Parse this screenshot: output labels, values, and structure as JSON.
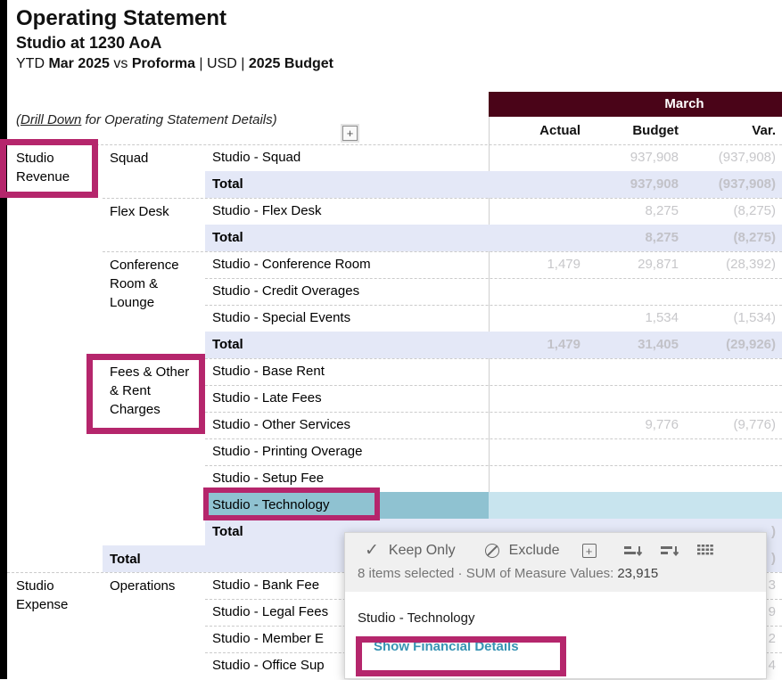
{
  "title": {
    "heading": "Operating Statement",
    "subheading": "Studio at 1230 AoA",
    "subtitle_parts": [
      {
        "text": "YTD ",
        "bold": false
      },
      {
        "text": "Mar 2025",
        "bold": true
      },
      {
        "text": " vs ",
        "bold": false
      },
      {
        "text": "Proforma",
        "bold": true
      },
      {
        "text": " | USD | ",
        "bold": false
      },
      {
        "text": "2025 Budget",
        "bold": true
      }
    ]
  },
  "drill_note_parts": [
    {
      "text": "(",
      "underline": false
    },
    {
      "text": "Drill Down",
      "underline": true
    },
    {
      "text": " for Operating Statement Details)",
      "underline": false
    }
  ],
  "expand_glyph": "+",
  "table": {
    "month_header": "March",
    "columns": [
      "Actual",
      "Budget",
      "Var."
    ],
    "rows": [
      {
        "l1": "Studio Revenue",
        "l2": "Squad",
        "label": "Studio - Squad",
        "actual": "",
        "budget": "937,908",
        "var": "(937,908)",
        "type": "item",
        "sep": "l1"
      },
      {
        "label": "Total",
        "actual": "",
        "budget": "937,908",
        "var": "(937,908)",
        "type": "total",
        "sep": "l3"
      },
      {
        "l2": "Flex Desk",
        "label": "Studio - Flex Desk",
        "actual": "",
        "budget": "8,275",
        "var": "(8,275)",
        "type": "item",
        "sep": "l2"
      },
      {
        "label": "Total",
        "actual": "",
        "budget": "8,275",
        "var": "(8,275)",
        "type": "total",
        "sep": "l3"
      },
      {
        "l2": "Conference Room & Lounge",
        "label": "Studio - Conference Room",
        "actual": "1,479",
        "budget": "29,871",
        "var": "(28,392)",
        "type": "item",
        "sep": "l2"
      },
      {
        "label": "Studio - Credit Overages",
        "actual": "",
        "budget": "",
        "var": "",
        "type": "item",
        "sep": "l3"
      },
      {
        "label": "Studio - Special Events",
        "actual": "",
        "budget": "1,534",
        "var": "(1,534)",
        "type": "item",
        "sep": "l3"
      },
      {
        "label": "Total",
        "actual": "1,479",
        "budget": "31,405",
        "var": "(29,926)",
        "type": "total",
        "sep": "l3"
      },
      {
        "l2": "Fees & Other & Rent Charges",
        "label": "Studio - Base Rent",
        "actual": "",
        "budget": "",
        "var": "",
        "type": "item",
        "sep": "l2"
      },
      {
        "label": "Studio - Late Fees",
        "actual": "",
        "budget": "",
        "var": "",
        "type": "item",
        "sep": "l3"
      },
      {
        "label": "Studio - Other Services",
        "actual": "",
        "budget": "9,776",
        "var": "(9,776)",
        "type": "item",
        "sep": "l3"
      },
      {
        "label": "Studio - Printing Overage",
        "actual": "",
        "budget": "",
        "var": "",
        "type": "item",
        "sep": "l3"
      },
      {
        "label": "Studio - Setup Fee",
        "actual": "",
        "budget": "",
        "var": "",
        "type": "item",
        "sep": "l3"
      },
      {
        "label": "Studio - Technology",
        "actual": "",
        "budget": "",
        "var": "",
        "type": "selected",
        "sep": "l3"
      },
      {
        "label": "Total",
        "actual": "",
        "budget": "",
        "var": ")",
        "type": "total",
        "sep": "l3"
      },
      {
        "l2": "Total",
        "label": "",
        "actual": "",
        "budget": "",
        "var": ")",
        "type": "grandtotal",
        "sep": "l2"
      },
      {
        "l1": "Studio Expense",
        "l2": "Operations",
        "label": "Studio - Bank Fee",
        "actual": "",
        "budget": "",
        "var": "3",
        "type": "item",
        "sep": "l1"
      },
      {
        "label": "Studio - Legal Fees",
        "actual": "",
        "budget": "",
        "var": "9",
        "type": "item",
        "sep": "l3"
      },
      {
        "label": "Studio - Member E",
        "actual": "",
        "budget": "",
        "var": "2",
        "type": "item",
        "sep": "l3"
      },
      {
        "label": "Studio - Office Sup",
        "actual": "",
        "budget": "",
        "var": "4",
        "type": "item",
        "sep": "l3"
      }
    ]
  },
  "tooltip": {
    "keep_only": "Keep Only",
    "exclude": "Exclude",
    "check_glyph": "✓",
    "plus_glyph": "+",
    "summary_text": "8 items selected  ·  SUM of Measure Values:",
    "summary_value": "23,915",
    "item_label": "Studio - Technology",
    "link_label": "Show Financial Details"
  },
  "colors": {
    "header_maroon": "#4A0418",
    "annotation_magenta": "#B5266C",
    "total_row_bg": "#E4E8F7",
    "selected_label_bg": "#8FC2D1",
    "selected_values_bg": "#C8E4EE",
    "link_teal": "#3793B3",
    "muted_value_gray": "#C7C7CA"
  }
}
